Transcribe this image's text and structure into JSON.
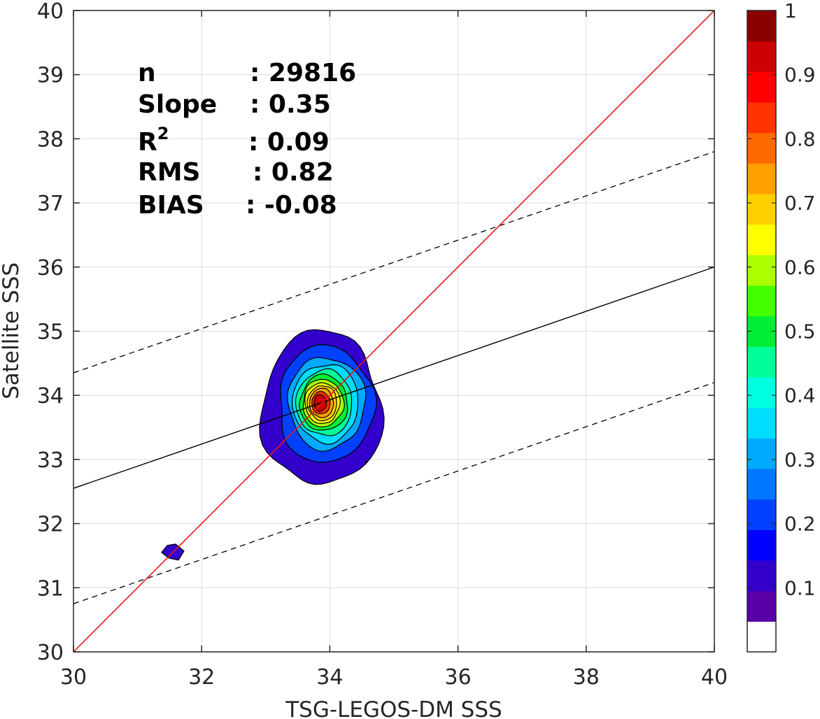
{
  "chart_data": {
    "type": "contour-scatter",
    "xlabel": "TSG-LEGOS-DM SSS",
    "ylabel": "Satellite SSS",
    "xlim": [
      30,
      40
    ],
    "ylim": [
      30,
      40
    ],
    "xticks": [
      30,
      32,
      34,
      36,
      38,
      40
    ],
    "yticks": [
      30,
      31,
      32,
      33,
      34,
      35,
      36,
      37,
      38,
      39,
      40
    ],
    "grid": true,
    "stats": [
      {
        "label": "n",
        "sup": "",
        "value": ": 29816"
      },
      {
        "label": "Slope",
        "sup": "",
        "value": ": 0.35"
      },
      {
        "label": "R",
        "sup": "2",
        "value": ": 0.09"
      },
      {
        "label": "RMS",
        "sup": "",
        "value": ": 0.82"
      },
      {
        "label": "BIAS",
        "sup": "",
        "value": ": -0.08"
      }
    ],
    "lines": {
      "identity": {
        "x": [
          30,
          40
        ],
        "y": [
          30,
          40
        ],
        "color": "#e41a1c"
      },
      "regression": {
        "x": [
          30,
          40
        ],
        "y": [
          32.55,
          36.0
        ],
        "color": "#000000"
      },
      "upper_bound": {
        "x": [
          30,
          40
        ],
        "y": [
          34.35,
          37.8
        ],
        "style": "dashed"
      },
      "lower_bound": {
        "x": [
          30,
          40
        ],
        "y": [
          30.75,
          34.2
        ],
        "style": "dashed"
      }
    },
    "density_peak": {
      "x": 33.85,
      "y": 33.88
    },
    "secondary_cluster": {
      "x": 31.55,
      "y": 31.55
    },
    "colorbar": {
      "ticks": [
        "0.1",
        "0.2",
        "0.3",
        "0.4",
        "0.5",
        "0.6",
        "0.7",
        "0.8",
        "0.9",
        "1"
      ],
      "range": [
        0,
        1
      ],
      "colors": [
        "#ffffff",
        "#5a00a8",
        "#3300cc",
        "#0000ff",
        "#0040ff",
        "#0077ff",
        "#00aaff",
        "#00ddff",
        "#00ffe0",
        "#00ff99",
        "#00ee33",
        "#44ff00",
        "#aaff00",
        "#ffff00",
        "#ffd000",
        "#ffa000",
        "#ff6a00",
        "#ff3300",
        "#ff0000",
        "#cc0000",
        "#8a0000"
      ]
    }
  }
}
